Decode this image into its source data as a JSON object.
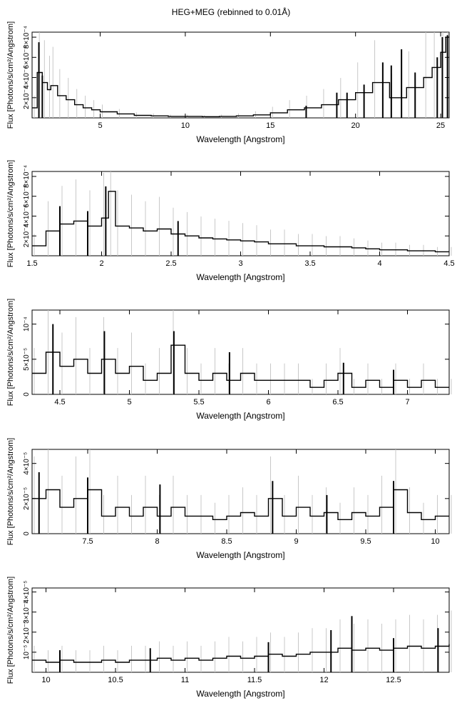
{
  "title": "HEG+MEG (rebinned to 0.01Å)",
  "chart_data": [
    {
      "type": "line",
      "step": true,
      "xlabel": "Wavelength [Angstrom]",
      "ylabel": "Flux [Photons/s/cm²/Angstrom]",
      "xlim": [
        1.0,
        25.5
      ],
      "ylim": [
        0,
        0.00085
      ],
      "xticks": [
        5,
        10,
        15,
        20,
        25
      ],
      "xtick_labels": [
        "5",
        "10",
        "15",
        "20",
        "25"
      ],
      "yticks": [
        0.0002,
        0.0004,
        0.0006,
        0.0008
      ],
      "ytick_labels": [
        "2×10⁻⁴",
        "4×10⁻⁴",
        "6×10⁻⁴",
        "8×10⁻⁴"
      ],
      "x": [
        1.0,
        1.3,
        1.6,
        1.9,
        2.1,
        2.5,
        3.0,
        3.5,
        4.0,
        4.5,
        5.0,
        6.0,
        7.0,
        8.0,
        9.0,
        10.0,
        11.0,
        12.0,
        13.0,
        14.0,
        15.0,
        16.0,
        17.0,
        18.0,
        19.0,
        20.0,
        21.0,
        22.0,
        23.0,
        24.0,
        24.5,
        25.0,
        25.3
      ],
      "y": [
        0.0001,
        0.00045,
        0.00035,
        0.00028,
        0.00032,
        0.00022,
        0.00018,
        0.00013,
        0.0001,
        8e-05,
        6e-05,
        4e-05,
        2.5e-05,
        2e-05,
        1.5e-05,
        1.5e-05,
        1.2e-05,
        1.5e-05,
        2e-05,
        3e-05,
        5e-05,
        8e-05,
        0.0001,
        0.00013,
        0.00018,
        0.00025,
        0.00035,
        0.0002,
        0.0003,
        0.0004,
        0.0005,
        0.00065,
        0.0008
      ],
      "spikes": [
        {
          "x": 1.4,
          "y": 0.00075
        },
        {
          "x": 1.6,
          "y": 0.00042
        },
        {
          "x": 17.1,
          "y": 0.00012
        },
        {
          "x": 18.9,
          "y": 0.00025
        },
        {
          "x": 19.5,
          "y": 0.00025
        },
        {
          "x": 20.5,
          "y": 0.00033
        },
        {
          "x": 21.6,
          "y": 0.00055
        },
        {
          "x": 22.1,
          "y": 0.00052
        },
        {
          "x": 22.7,
          "y": 0.00068
        },
        {
          "x": 23.5,
          "y": 0.00045
        },
        {
          "x": 24.8,
          "y": 0.0006
        },
        {
          "x": 25.1,
          "y": 0.0008
        },
        {
          "x": 25.4,
          "y": 0.00082
        }
      ]
    },
    {
      "type": "line",
      "step": true,
      "xlabel": "Wavelength [Angstrom]",
      "ylabel": "Flux [Photons/s/cm²/Angstrom]",
      "xlim": [
        1.5,
        4.5
      ],
      "ylim": [
        0,
        0.00085
      ],
      "xticks": [
        1.5,
        2,
        2.5,
        3,
        3.5,
        4,
        4.5
      ],
      "xtick_labels": [
        "1.5",
        "2",
        "2.5",
        "3",
        "3.5",
        "4",
        "4.5"
      ],
      "yticks": [
        0.0002,
        0.0004,
        0.0006,
        0.0008
      ],
      "ytick_labels": [
        "2×10⁻⁴",
        "4×10⁻⁴",
        "6×10⁻⁴",
        "8×10⁻⁴"
      ],
      "x": [
        1.5,
        1.6,
        1.7,
        1.8,
        1.9,
        2.0,
        2.05,
        2.1,
        2.2,
        2.3,
        2.4,
        2.5,
        2.6,
        2.7,
        2.8,
        2.9,
        3.0,
        3.1,
        3.2,
        3.3,
        3.4,
        3.5,
        3.6,
        3.7,
        3.8,
        3.9,
        4.0,
        4.1,
        4.2,
        4.3,
        4.4,
        4.5
      ],
      "y": [
        0.0001,
        0.00025,
        0.00032,
        0.00035,
        0.0003,
        0.00038,
        0.00065,
        0.0003,
        0.00028,
        0.00025,
        0.00027,
        0.00022,
        0.0002,
        0.00018,
        0.00017,
        0.00016,
        0.00015,
        0.00014,
        0.00012,
        0.00012,
        0.0001,
        0.0001,
        9e-05,
        9e-05,
        8e-05,
        7e-05,
        6e-05,
        6e-05,
        5e-05,
        5e-05,
        4e-05,
        4e-05
      ],
      "spikes": [
        {
          "x": 1.7,
          "y": 0.0005
        },
        {
          "x": 1.9,
          "y": 0.00045
        },
        {
          "x": 2.03,
          "y": 0.0007
        },
        {
          "x": 2.55,
          "y": 0.00035
        }
      ]
    },
    {
      "type": "line",
      "step": true,
      "xlabel": "Wavelength [Angstrom]",
      "ylabel": "Flux [Photons/s/cm²/Angstrom]",
      "xlim": [
        4.3,
        7.3
      ],
      "ylim": [
        0,
        0.00012
      ],
      "xticks": [
        4.5,
        5,
        5.5,
        6,
        6.5,
        7
      ],
      "xtick_labels": [
        "4.5",
        "5",
        "5.5",
        "6",
        "6.5",
        "7"
      ],
      "yticks": [
        0,
        5e-05,
        0.0001
      ],
      "ytick_labels": [
        "0",
        "5×10⁻⁵",
        "10⁻⁴"
      ],
      "x": [
        4.3,
        4.4,
        4.5,
        4.6,
        4.7,
        4.8,
        4.9,
        5.0,
        5.1,
        5.2,
        5.3,
        5.4,
        5.5,
        5.6,
        5.7,
        5.8,
        5.9,
        6.0,
        6.1,
        6.2,
        6.3,
        6.4,
        6.5,
        6.6,
        6.7,
        6.8,
        6.9,
        7.0,
        7.1,
        7.2,
        7.3
      ],
      "y": [
        3e-05,
        6e-05,
        4e-05,
        5e-05,
        3e-05,
        5e-05,
        3e-05,
        4e-05,
        2e-05,
        3e-05,
        7e-05,
        3e-05,
        2e-05,
        3e-05,
        2e-05,
        3e-05,
        2e-05,
        2e-05,
        2e-05,
        2e-05,
        1e-05,
        2e-05,
        3e-05,
        1e-05,
        2e-05,
        1e-05,
        2e-05,
        1e-05,
        2e-05,
        1e-05,
        1e-05
      ],
      "spikes": [
        {
          "x": 4.45,
          "y": 0.0001
        },
        {
          "x": 4.82,
          "y": 9e-05
        },
        {
          "x": 5.32,
          "y": 9e-05
        },
        {
          "x": 5.72,
          "y": 6e-05
        },
        {
          "x": 6.54,
          "y": 4.5e-05
        },
        {
          "x": 6.9,
          "y": 3.5e-05
        }
      ]
    },
    {
      "type": "line",
      "step": true,
      "xlabel": "Wavelength [Angstrom]",
      "ylabel": "Flux [Photons/s/cm²/Angstrom]",
      "xlim": [
        7.1,
        10.1
      ],
      "ylim": [
        0,
        4.8e-05
      ],
      "xticks": [
        7.5,
        8,
        8.5,
        9,
        9.5,
        10
      ],
      "xtick_labels": [
        "7.5",
        "8",
        "8.5",
        "9",
        "9.5",
        "10"
      ],
      "yticks": [
        0,
        2e-05,
        4e-05
      ],
      "ytick_labels": [
        "0",
        "2×10⁻⁵",
        "4×10⁻⁵"
      ],
      "x": [
        7.1,
        7.2,
        7.3,
        7.4,
        7.5,
        7.6,
        7.7,
        7.8,
        7.9,
        8.0,
        8.1,
        8.2,
        8.3,
        8.4,
        8.5,
        8.6,
        8.7,
        8.8,
        8.9,
        9.0,
        9.1,
        9.2,
        9.3,
        9.4,
        9.5,
        9.6,
        9.7,
        9.8,
        9.9,
        10.0,
        10.1
      ],
      "y": [
        2e-05,
        2.5e-05,
        1.5e-05,
        2e-05,
        2.5e-05,
        1e-05,
        1.5e-05,
        1e-05,
        1.5e-05,
        1e-05,
        1.5e-05,
        1e-05,
        1e-05,
        8e-06,
        1e-05,
        1.2e-05,
        1e-05,
        2e-05,
        1e-05,
        1.5e-05,
        1e-05,
        1.2e-05,
        8e-06,
        1.2e-05,
        1e-05,
        1.5e-05,
        2.5e-05,
        1.2e-05,
        8e-06,
        1e-05,
        1e-05
      ],
      "spikes": [
        {
          "x": 7.15,
          "y": 3.5e-05
        },
        {
          "x": 7.5,
          "y": 3.2e-05
        },
        {
          "x": 8.02,
          "y": 2.8e-05
        },
        {
          "x": 8.83,
          "y": 3e-05
        },
        {
          "x": 9.22,
          "y": 2.2e-05
        },
        {
          "x": 9.7,
          "y": 3e-05
        }
      ]
    },
    {
      "type": "line",
      "step": true,
      "xlabel": "Wavelength [Angstrom]",
      "ylabel": "Flux [Photons/s/cm²/Angstrom]",
      "xlim": [
        9.9,
        12.9
      ],
      "ylim": [
        0,
        4.2e-05
      ],
      "xticks": [
        10,
        10.5,
        11,
        11.5,
        12,
        12.5
      ],
      "xtick_labels": [
        "10",
        "10.5",
        "11",
        "11.5",
        "12",
        "12.5"
      ],
      "yticks": [
        1e-05,
        2e-05,
        3e-05,
        4e-05
      ],
      "ytick_labels": [
        "10⁻⁵",
        "2×10⁻⁵",
        "3×10⁻⁵",
        "4×10⁻⁵"
      ],
      "x": [
        9.9,
        10.0,
        10.1,
        10.2,
        10.3,
        10.4,
        10.5,
        10.6,
        10.7,
        10.8,
        10.9,
        11.0,
        11.1,
        11.2,
        11.3,
        11.4,
        11.5,
        11.6,
        11.7,
        11.8,
        11.9,
        12.0,
        12.1,
        12.2,
        12.3,
        12.4,
        12.5,
        12.6,
        12.7,
        12.8,
        12.9
      ],
      "y": [
        6e-06,
        5e-06,
        6e-06,
        5e-06,
        5e-06,
        6e-06,
        5e-06,
        6e-06,
        6e-06,
        7e-06,
        6e-06,
        7e-06,
        6e-06,
        7e-06,
        8e-06,
        7e-06,
        8e-06,
        9e-06,
        8e-06,
        9e-06,
        1e-05,
        1e-05,
        1.2e-05,
        1.1e-05,
        1.2e-05,
        1.1e-05,
        1.2e-05,
        1.3e-05,
        1.2e-05,
        1.3e-05,
        1.4e-05
      ],
      "spikes": [
        {
          "x": 10.1,
          "y": 1.1e-05
        },
        {
          "x": 10.75,
          "y": 1.2e-05
        },
        {
          "x": 11.6,
          "y": 1.5e-05
        },
        {
          "x": 12.05,
          "y": 2.1e-05
        },
        {
          "x": 12.2,
          "y": 2.8e-05
        },
        {
          "x": 12.5,
          "y": 1.7e-05
        },
        {
          "x": 12.82,
          "y": 2.2e-05
        }
      ]
    }
  ]
}
